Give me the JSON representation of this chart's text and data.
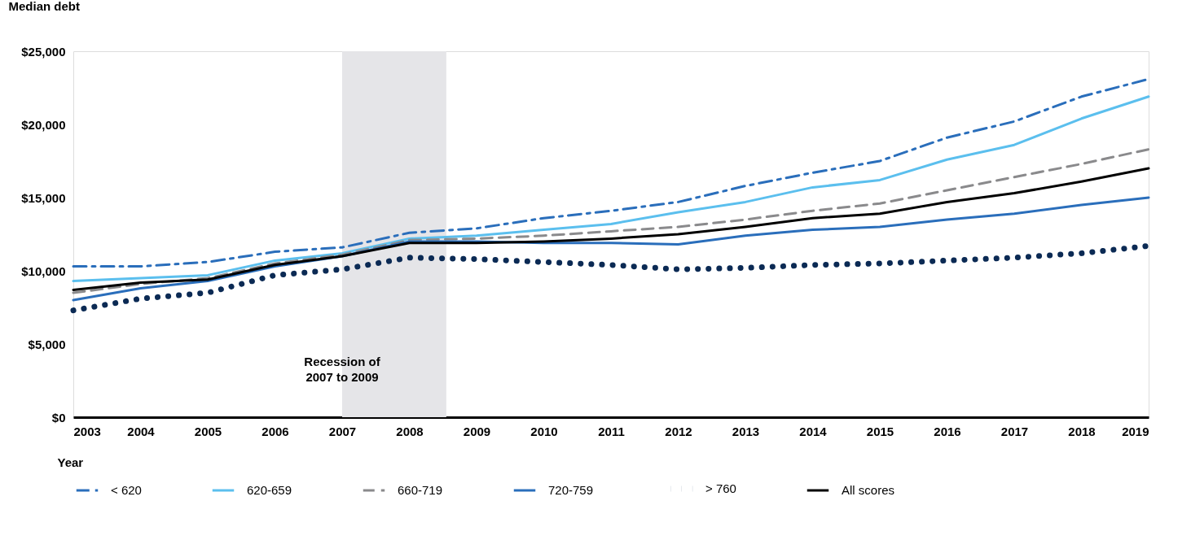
{
  "chart_data": {
    "type": "line",
    "xlabel": "Year",
    "ylabel": "Median debt",
    "x": [
      2003,
      2004,
      2005,
      2006,
      2007,
      2008,
      2009,
      2010,
      2011,
      2012,
      2013,
      2014,
      2015,
      2016,
      2017,
      2018,
      2019
    ],
    "xlim": [
      2003,
      2019
    ],
    "xticks": [
      2003,
      2004,
      2005,
      2006,
      2007,
      2008,
      2009,
      2010,
      2011,
      2012,
      2013,
      2014,
      2015,
      2016,
      2017,
      2018,
      2019
    ],
    "ylim": [
      0,
      25000
    ],
    "yticks": [
      {
        "value": 0,
        "label": "$0"
      },
      {
        "value": 5000,
        "label": "$5,000"
      },
      {
        "value": 10000,
        "label": "$10,000"
      },
      {
        "value": 15000,
        "label": "$15,000"
      },
      {
        "value": 20000,
        "label": "$20,000"
      },
      {
        "value": 25000,
        "label": "$25,000"
      }
    ],
    "grid": false,
    "legend": "bottom",
    "bands": [
      {
        "axis": "x",
        "from": 2007,
        "to": 2008.55,
        "label": "Recession of\n2007 to 2009",
        "color": "#e5e5e8"
      }
    ],
    "series": [
      {
        "name": "< 620",
        "color": "#2a6ebb",
        "line_style": "dashdot",
        "values": [
          10300,
          10300,
          10600,
          11300,
          11600,
          12600,
          12900,
          13600,
          14100,
          14700,
          15800,
          16700,
          17500,
          19100,
          20200,
          21900,
          23100
        ]
      },
      {
        "name": "620-659",
        "color": "#5bbfee",
        "line_style": "solid",
        "values": [
          9300,
          9500,
          9700,
          10700,
          11200,
          12200,
          12400,
          12800,
          13200,
          14000,
          14700,
          15700,
          16200,
          17600,
          18600,
          20400,
          21900
        ]
      },
      {
        "name": "660-719",
        "color": "#8a8a8c",
        "line_style": "dashed",
        "values": [
          8500,
          9100,
          9500,
          10500,
          11100,
          12100,
          12200,
          12400,
          12700,
          13000,
          13500,
          14100,
          14600,
          15500,
          16400,
          17300,
          18300
        ]
      },
      {
        "name": "720-759",
        "color": "#2a6ebb",
        "line_style": "solid",
        "values": [
          8000,
          8800,
          9300,
          10300,
          11000,
          12000,
          12000,
          11900,
          11900,
          11800,
          12400,
          12800,
          13000,
          13500,
          13900,
          14500,
          15000
        ]
      },
      {
        "name": "> 760",
        "color": "#0b2a54",
        "line_style": "dotted",
        "values": [
          7300,
          8100,
          8500,
          9700,
          10100,
          10900,
          10800,
          10600,
          10400,
          10100,
          10200,
          10400,
          10500,
          10700,
          10900,
          11200,
          11700
        ]
      },
      {
        "name": "All scores",
        "color": "#000000",
        "line_style": "solid",
        "values": [
          8700,
          9200,
          9400,
          10400,
          11000,
          11900,
          11900,
          12000,
          12200,
          12500,
          13000,
          13600,
          13900,
          14700,
          15300,
          16100,
          17000
        ]
      }
    ]
  }
}
